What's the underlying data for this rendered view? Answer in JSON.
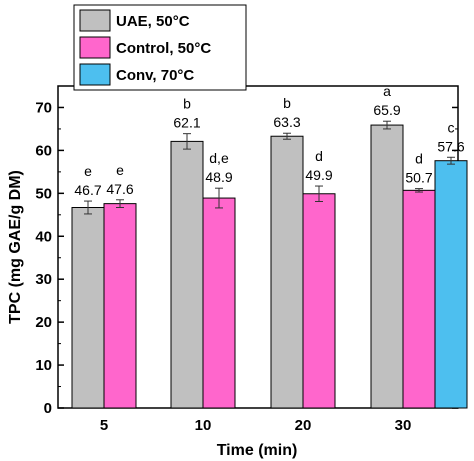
{
  "chart_data": {
    "type": "bar",
    "title": "",
    "xlabel": "Time (min)",
    "ylabel": "TPC (mg GAE/g DM)",
    "ylim": [
      0,
      75
    ],
    "yticks": [
      0,
      10,
      20,
      30,
      40,
      50,
      60,
      70
    ],
    "categories": [
      "5",
      "10",
      "20",
      "30"
    ],
    "legend_position": "top-left",
    "series": [
      {
        "name": "UAE, 50°C",
        "color": "#c0c0c0",
        "values": [
          46.7,
          62.1,
          63.3,
          65.9
        ],
        "errors": [
          1.5,
          1.8,
          0.7,
          0.9
        ],
        "value_labels": [
          "46.7",
          "62.1",
          "63.3",
          "65.9"
        ],
        "letters": [
          "e",
          "b",
          "b",
          "a"
        ]
      },
      {
        "name": "Control, 50°C",
        "color": "#ff66cc",
        "values": [
          47.6,
          48.9,
          49.9,
          50.7
        ],
        "errors": [
          0.9,
          2.3,
          1.8,
          0.4
        ],
        "value_labels": [
          "47.6",
          "48.9",
          "49.9",
          "50.7"
        ],
        "letters": [
          "e",
          "d,e",
          "d",
          "d"
        ]
      },
      {
        "name": "Conv, 70°C",
        "color": "#4dbfef",
        "values": [
          null,
          null,
          null,
          57.6
        ],
        "errors": [
          null,
          null,
          null,
          0.8
        ],
        "value_labels": [
          null,
          null,
          null,
          "57.6"
        ],
        "letters": [
          null,
          null,
          null,
          "c"
        ]
      }
    ]
  }
}
